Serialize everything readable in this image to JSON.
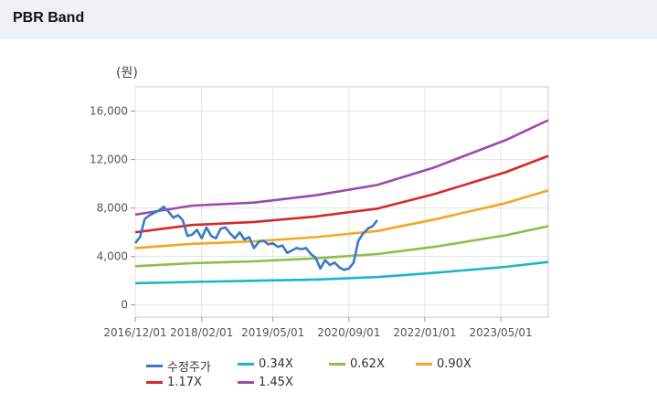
{
  "header": {
    "title": "PBR Band"
  },
  "chart_data": {
    "type": "line",
    "unit_label": "(원)",
    "x_tick_labels": [
      "2016/12/01",
      "2018/02/01",
      "2019/05/01",
      "2020/09/01",
      "2022/01/01",
      "2023/05/01"
    ],
    "y_tick_labels": [
      "0",
      "4,000",
      "8,000",
      "12,000",
      "16,000"
    ],
    "y_ticks": [
      0,
      4000,
      8000,
      12000,
      16000
    ],
    "ylim": [
      -1000,
      18000
    ],
    "grid": true,
    "legend_position": "bottom",
    "series": [
      {
        "name": "수정주가",
        "color": "#3a78c9",
        "points": [
          [
            "2016-12",
            5100
          ],
          [
            "2017-01",
            5600
          ],
          [
            "2017-02",
            7100
          ],
          [
            "2017-03",
            7400
          ],
          [
            "2017-04",
            7600
          ],
          [
            "2017-05",
            7800
          ],
          [
            "2017-06",
            8100
          ],
          [
            "2017-07",
            7700
          ],
          [
            "2017-08",
            7200
          ],
          [
            "2017-09",
            7400
          ],
          [
            "2017-10",
            7000
          ],
          [
            "2017-11",
            5700
          ],
          [
            "2017-12",
            5800
          ],
          [
            "2018-01",
            6200
          ],
          [
            "2018-02",
            5500
          ],
          [
            "2018-03",
            6400
          ],
          [
            "2018-04",
            5700
          ],
          [
            "2018-05",
            5500
          ],
          [
            "2018-06",
            6300
          ],
          [
            "2018-07",
            6400
          ],
          [
            "2018-08",
            5900
          ],
          [
            "2018-09",
            5500
          ],
          [
            "2018-10",
            6000
          ],
          [
            "2018-11",
            5400
          ],
          [
            "2018-12",
            5600
          ],
          [
            "2019-01",
            4700
          ],
          [
            "2019-02",
            5200
          ],
          [
            "2019-03",
            5300
          ],
          [
            "2019-04",
            5000
          ],
          [
            "2019-05",
            5100
          ],
          [
            "2019-06",
            4800
          ],
          [
            "2019-07",
            4900
          ],
          [
            "2019-08",
            4300
          ],
          [
            "2019-09",
            4500
          ],
          [
            "2019-10",
            4700
          ],
          [
            "2019-11",
            4600
          ],
          [
            "2019-12",
            4700
          ],
          [
            "2020-01",
            4200
          ],
          [
            "2020-02",
            3900
          ],
          [
            "2020-03",
            3000
          ],
          [
            "2020-04",
            3700
          ],
          [
            "2020-05",
            3300
          ],
          [
            "2020-06",
            3500
          ],
          [
            "2020-07",
            3100
          ],
          [
            "2020-08",
            2900
          ],
          [
            "2020-09",
            3000
          ],
          [
            "2020-10",
            3500
          ],
          [
            "2020-11",
            5300
          ],
          [
            "2020-12",
            5900
          ],
          [
            "2021-01",
            6300
          ],
          [
            "2021-02",
            6500
          ],
          [
            "2021-03",
            7000
          ]
        ]
      },
      {
        "name": "0.34X",
        "color": "#1cb5c9",
        "points": [
          [
            "2016-12",
            1800
          ],
          [
            "2017-12",
            1900
          ],
          [
            "2019-01",
            2000
          ],
          [
            "2020-02",
            2100
          ],
          [
            "2021-03",
            2300
          ],
          [
            "2022-03",
            2650
          ],
          [
            "2023-06",
            3150
          ],
          [
            "2024-03",
            3550
          ]
        ]
      },
      {
        "name": "0.62X",
        "color": "#8cbf48",
        "points": [
          [
            "2016-12",
            3200
          ],
          [
            "2017-12",
            3450
          ],
          [
            "2019-01",
            3600
          ],
          [
            "2020-02",
            3850
          ],
          [
            "2021-03",
            4200
          ],
          [
            "2022-03",
            4800
          ],
          [
            "2023-06",
            5750
          ],
          [
            "2024-03",
            6500
          ]
        ]
      },
      {
        "name": "0.90X",
        "color": "#f5a623",
        "points": [
          [
            "2016-12",
            4700
          ],
          [
            "2017-12",
            5050
          ],
          [
            "2019-01",
            5250
          ],
          [
            "2020-02",
            5600
          ],
          [
            "2021-03",
            6100
          ],
          [
            "2022-03",
            7050
          ],
          [
            "2023-06",
            8400
          ],
          [
            "2024-03",
            9450
          ]
        ]
      },
      {
        "name": "1.17X",
        "color": "#d42a2a",
        "points": [
          [
            "2016-12",
            6000
          ],
          [
            "2017-12",
            6600
          ],
          [
            "2019-01",
            6850
          ],
          [
            "2020-02",
            7300
          ],
          [
            "2021-03",
            7950
          ],
          [
            "2022-03",
            9150
          ],
          [
            "2023-06",
            10950
          ],
          [
            "2024-03",
            12300
          ]
        ]
      },
      {
        "name": "1.45X",
        "color": "#9b4bab",
        "points": [
          [
            "2016-12",
            7450
          ],
          [
            "2017-12",
            8200
          ],
          [
            "2019-01",
            8450
          ],
          [
            "2020-02",
            9050
          ],
          [
            "2021-03",
            9900
          ],
          [
            "2022-03",
            11350
          ],
          [
            "2023-06",
            13600
          ],
          [
            "2024-03",
            15250
          ]
        ]
      }
    ]
  }
}
